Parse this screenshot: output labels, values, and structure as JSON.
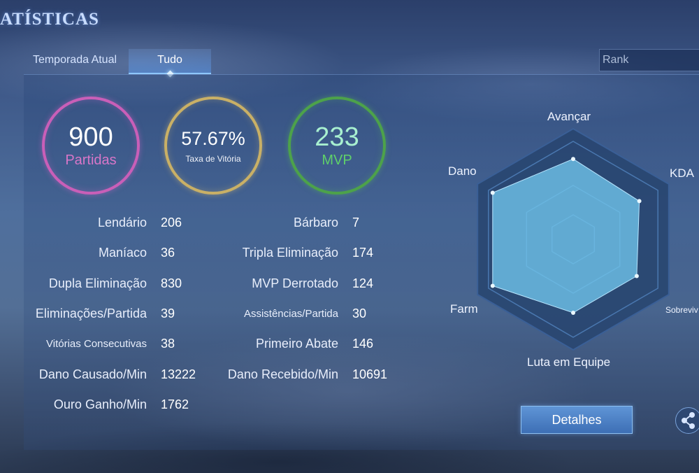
{
  "page_title": "ATÍSTICAS",
  "tabs": {
    "current_season": "Temporada Atual",
    "all": "Tudo"
  },
  "rank_search": {
    "placeholder": "Rank"
  },
  "summary": {
    "matches": {
      "value": "900",
      "label": "Partidas"
    },
    "win_rate": {
      "value": "57.67%",
      "label": "Taxa de Vitória"
    },
    "mvp": {
      "value": "233",
      "label": "MVP"
    }
  },
  "stats_left": [
    {
      "label": "Lendário",
      "value": "206"
    },
    {
      "label": "Maníaco",
      "value": "36"
    },
    {
      "label": "Dupla Eliminação",
      "value": "830"
    },
    {
      "label": "Eliminações/Partida",
      "value": "39"
    },
    {
      "label": "Vitórias Consecutivas",
      "value": "38"
    },
    {
      "label": "Dano Causado/Min",
      "value": "13222"
    },
    {
      "label": "Ouro Ganho/Min",
      "value": "1762"
    }
  ],
  "stats_right": [
    {
      "label": "Bárbaro",
      "value": "7"
    },
    {
      "label": "Tripla Eliminação",
      "value": "174"
    },
    {
      "label": "MVP Derrotado",
      "value": "124"
    },
    {
      "label": "Assistências/Partida",
      "value": "30"
    },
    {
      "label": "Primeiro Abate",
      "value": "146"
    },
    {
      "label": "Dano Recebido/Min",
      "value": "10691"
    }
  ],
  "radar": {
    "axes": [
      "Avançar",
      "KDA",
      "Sobreviv",
      "Luta em Equipe",
      "Farm",
      "Dano"
    ],
    "values": [
      0.82,
      0.78,
      0.75,
      0.75,
      0.95,
      0.95
    ],
    "fill_color": "#6fc3ea",
    "frame_color": "#27446e"
  },
  "details_button": "Detalhes",
  "share_icon": "share-icon"
}
